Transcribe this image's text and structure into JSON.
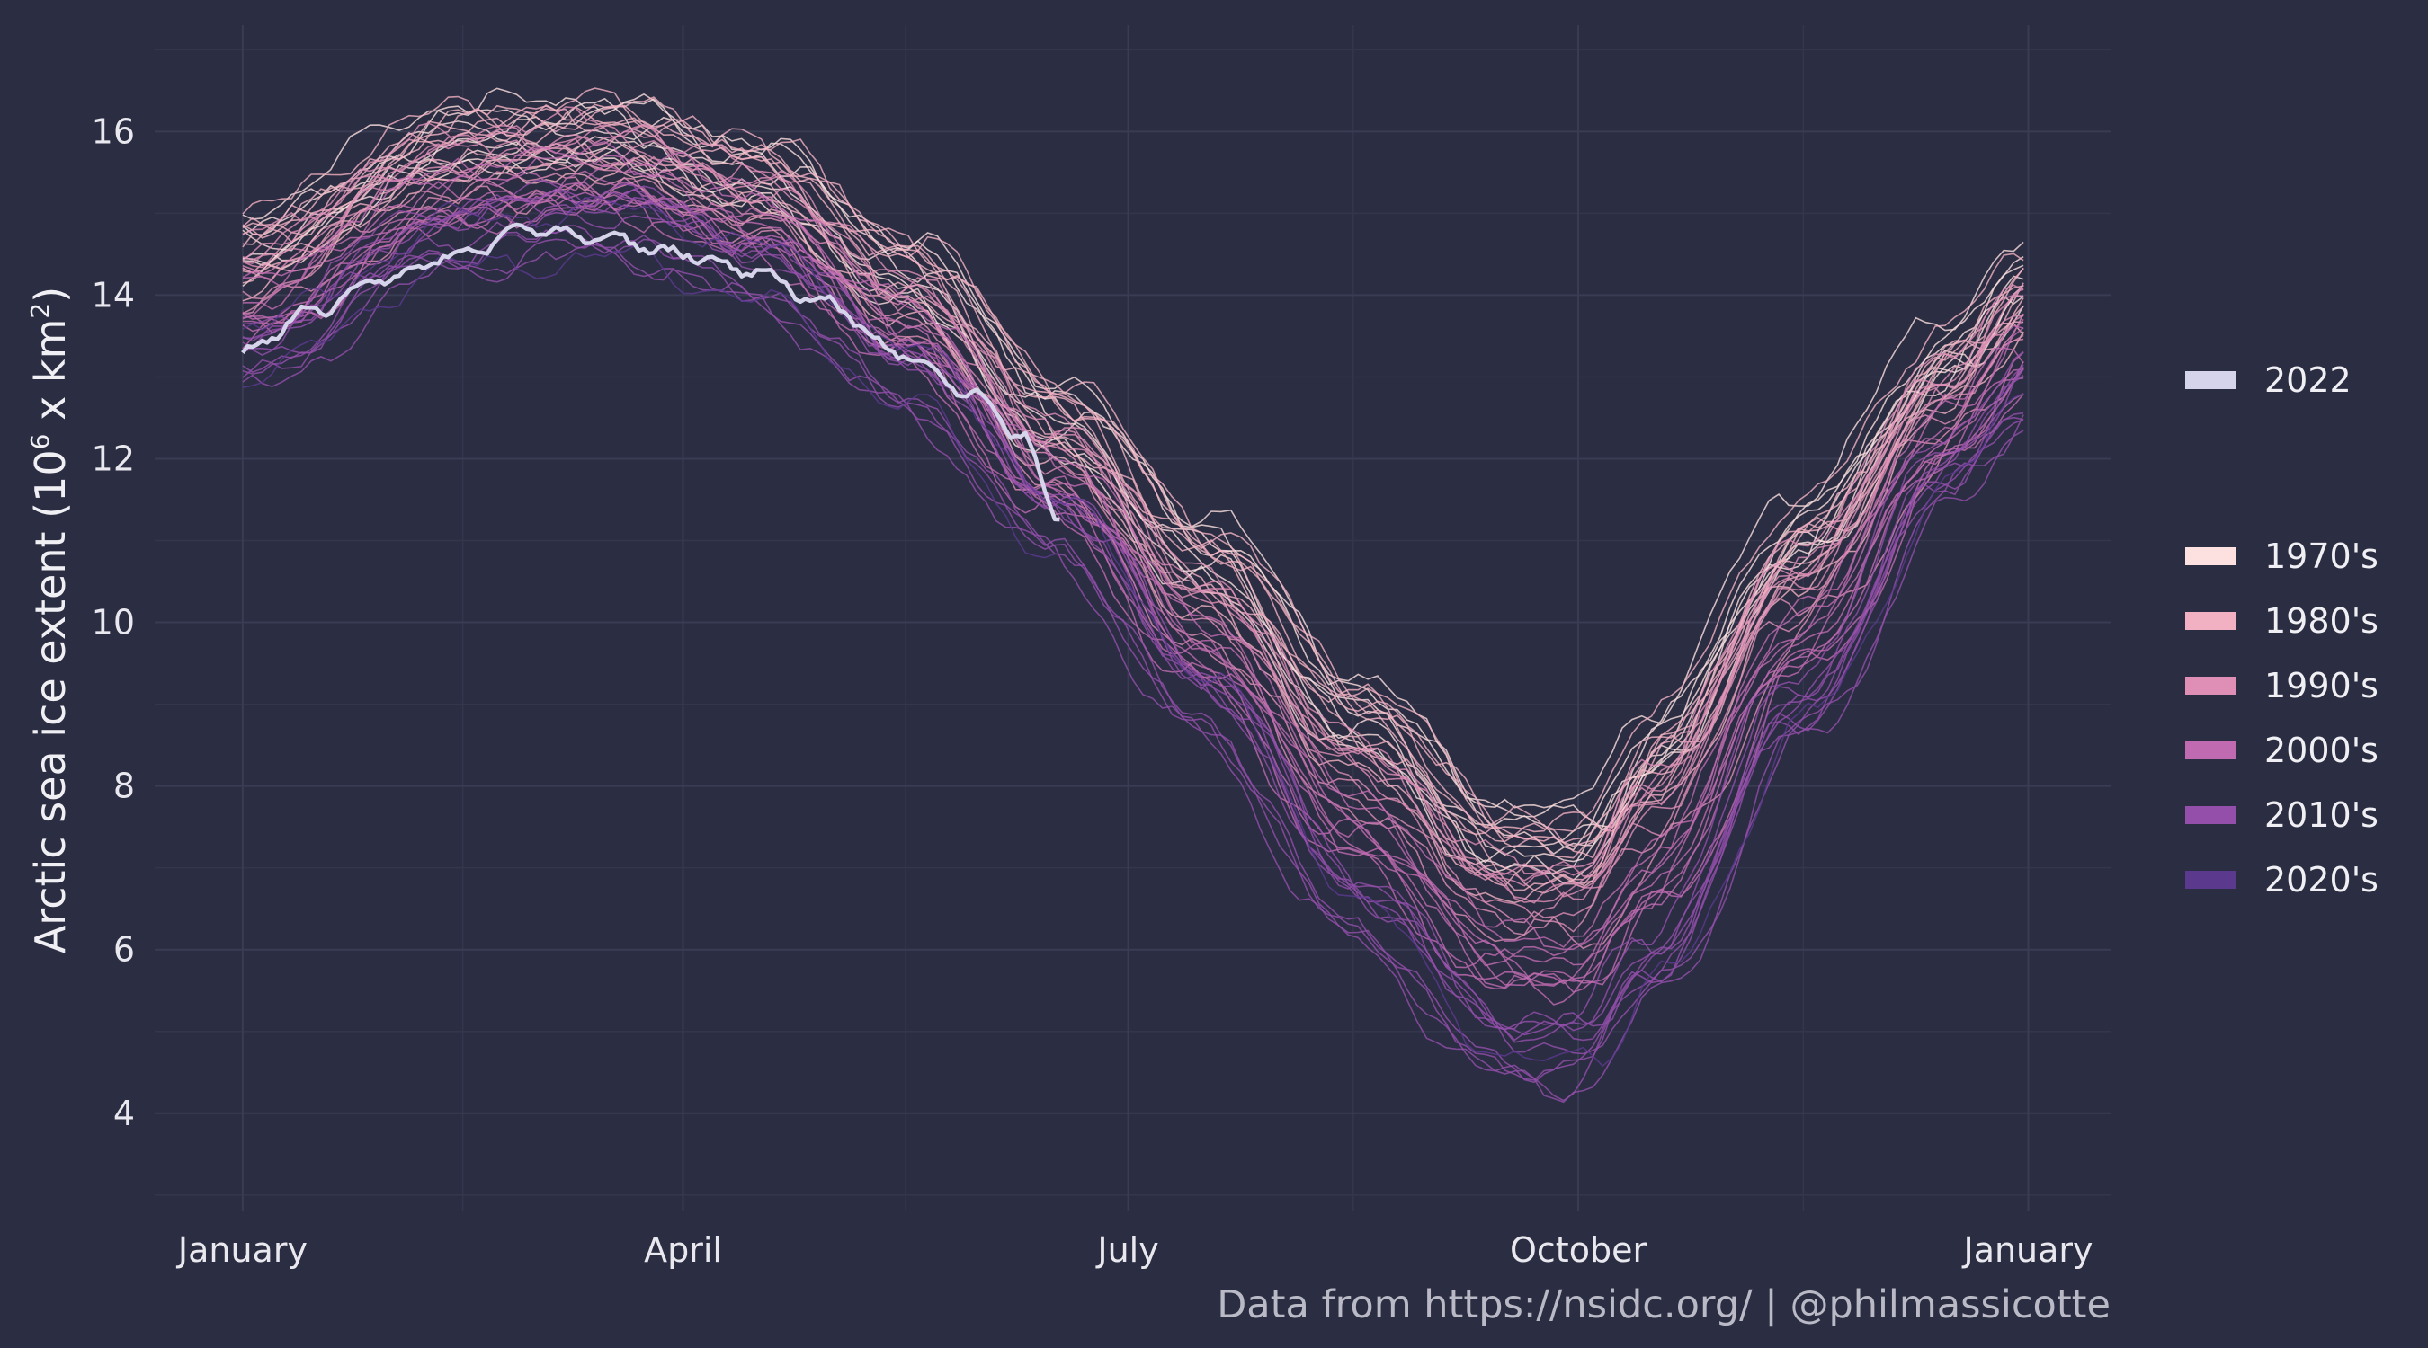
{
  "caption": "Data from https://nsidc.org/ | @philmassicotte",
  "legend": {
    "highlight": {
      "label": "2022",
      "color": "#d5d4ea"
    },
    "decades": [
      {
        "label": "1970's",
        "color": "#fde0e0"
      },
      {
        "label": "1980's",
        "color": "#f2b1c3"
      },
      {
        "label": "1990's",
        "color": "#df8fb6"
      },
      {
        "label": "2000's",
        "color": "#c06bb1"
      },
      {
        "label": "2010's",
        "color": "#944fab"
      },
      {
        "label": "2020's",
        "color": "#5b3a8e"
      }
    ]
  },
  "chart_data": {
    "type": "line",
    "title": "",
    "ylabel_main": "Arctic sea ice extent (10",
    "ylabel_exp1": "6",
    "ylabel_mid": " x km",
    "ylabel_exp2": "2",
    "ylabel_end": ")",
    "xlabel": "",
    "x_ticks": [
      {
        "label": "January",
        "day": 1
      },
      {
        "label": "April",
        "day": 91
      },
      {
        "label": "July",
        "day": 182
      },
      {
        "label": "October",
        "day": 274
      },
      {
        "label": "January",
        "day": 366
      }
    ],
    "y_ticks": [
      4,
      6,
      8,
      10,
      12,
      14,
      16
    ],
    "xlim": [
      -17,
      383
    ],
    "ylim": [
      2.8,
      17.3
    ],
    "grid": true,
    "legend_position": "right",
    "highlight_series": {
      "name": "2022",
      "x": [
        1,
        15,
        30,
        45,
        60,
        75,
        91,
        105,
        120,
        135,
        150,
        160,
        168
      ],
      "y": [
        13.3,
        13.8,
        14.2,
        14.5,
        14.8,
        14.7,
        14.5,
        14.3,
        13.9,
        13.3,
        12.8,
        12.3,
        11.3
      ]
    },
    "decade_envelopes": [
      {
        "name": "1970's",
        "count": 8,
        "x": [
          1,
          46,
          76,
          106,
          137,
          168,
          198,
          229,
          259,
          275,
          290,
          320,
          351,
          366
        ],
        "y": [
          14.7,
          16.0,
          16.1,
          15.6,
          14.4,
          12.6,
          11.0,
          9.0,
          7.5,
          7.4,
          8.6,
          11.2,
          13.4,
          14.3
        ]
      },
      {
        "name": "1980's",
        "count": 10,
        "x": [
          1,
          46,
          76,
          106,
          137,
          168,
          198,
          229,
          259,
          275,
          290,
          320,
          351,
          366
        ],
        "y": [
          14.5,
          15.8,
          15.9,
          15.4,
          14.2,
          12.4,
          10.6,
          8.7,
          7.1,
          7.1,
          8.3,
          10.9,
          13.1,
          14.0
        ]
      },
      {
        "name": "1990's",
        "count": 10,
        "x": [
          1,
          46,
          76,
          106,
          137,
          168,
          198,
          229,
          259,
          275,
          290,
          320,
          351,
          366
        ],
        "y": [
          14.3,
          15.6,
          15.7,
          15.2,
          13.9,
          12.1,
          10.2,
          8.2,
          6.7,
          6.6,
          7.8,
          10.5,
          12.8,
          13.8
        ]
      },
      {
        "name": "2000's",
        "count": 10,
        "x": [
          1,
          46,
          76,
          106,
          137,
          168,
          198,
          229,
          259,
          275,
          290,
          320,
          351,
          366
        ],
        "y": [
          13.8,
          15.2,
          15.4,
          14.9,
          13.6,
          11.7,
          9.7,
          7.5,
          5.9,
          5.8,
          6.9,
          9.8,
          12.3,
          13.3
        ]
      },
      {
        "name": "2010's",
        "count": 10,
        "x": [
          1,
          46,
          76,
          106,
          137,
          168,
          198,
          229,
          259,
          275,
          290,
          320,
          351,
          366
        ],
        "y": [
          13.2,
          14.7,
          14.9,
          14.3,
          13.0,
          11.2,
          9.0,
          6.5,
          4.8,
          4.7,
          5.8,
          8.9,
          11.8,
          12.8
        ]
      },
      {
        "name": "2020's",
        "count": 2,
        "x": [
          1,
          46,
          76,
          106,
          137,
          168,
          198,
          229,
          259,
          275,
          290,
          320,
          351,
          366
        ],
        "y": [
          13.3,
          14.6,
          14.7,
          14.2,
          12.9,
          11.0,
          8.8,
          6.1,
          4.2,
          4.4,
          5.4,
          8.6,
          11.6,
          12.6
        ]
      }
    ]
  }
}
